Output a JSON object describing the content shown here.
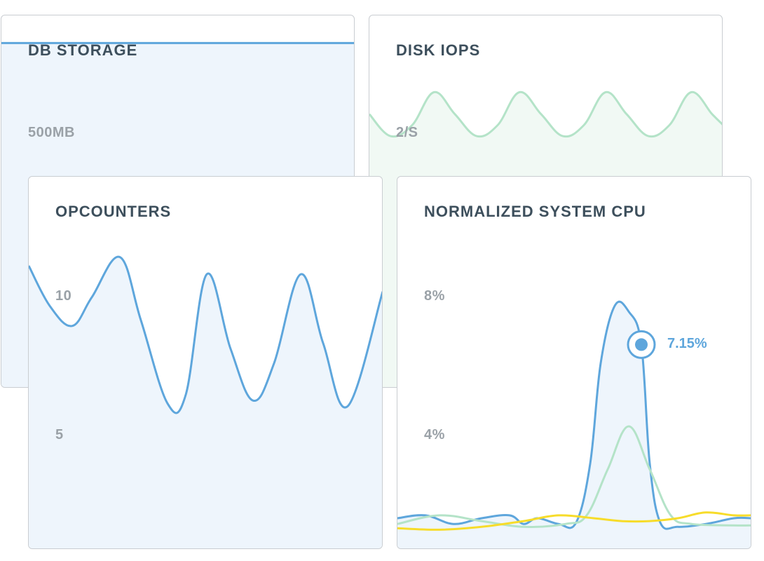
{
  "colors": {
    "blue": "#5ea6dc",
    "blue_fill": "#eef5fc",
    "green": "#b4e3c8",
    "green_fill": "#f1f9f4",
    "yellow": "#f7dc2a",
    "title": "#3d4f5c",
    "tick": "#9aa1a7"
  },
  "chart_data": [
    {
      "type": "area",
      "title": "DB STORAGE",
      "y_ticks": [
        {
          "label": "500MB",
          "value": 500
        }
      ],
      "series": [
        {
          "color": "blue",
          "values": [
            500,
            500,
            500,
            500,
            500,
            500,
            500,
            500,
            500,
            500
          ]
        }
      ],
      "ylim": [
        0,
        540
      ]
    },
    {
      "type": "area",
      "title": "DISK IOPS",
      "y_ticks": [
        {
          "label": "2/S",
          "value": 2
        }
      ],
      "series": [
        {
          "color": "green",
          "x": [
            0,
            30,
            61,
            92,
            122,
            153,
            183,
            214,
            245,
            276,
            306,
            337,
            367,
            398,
            428,
            459,
            489,
            505
          ],
          "values": [
            2.5,
            2.3,
            2.4,
            2.7,
            2.5,
            2.3,
            2.4,
            2.7,
            2.5,
            2.3,
            2.4,
            2.7,
            2.5,
            2.3,
            2.4,
            2.7,
            2.5,
            2.4
          ]
        }
      ],
      "ylim": [
        0,
        3.4
      ]
    },
    {
      "type": "area",
      "title": "OPCOUNTERS",
      "y_ticks": [
        {
          "label": "10",
          "value": 10
        },
        {
          "label": "5",
          "value": 5
        }
      ],
      "series": [
        {
          "color": "blue",
          "x": [
            0,
            30,
            62,
            90,
            130,
            160,
            198,
            224,
            254,
            288,
            320,
            350,
            388,
            420,
            455,
            505
          ],
          "values": [
            9.9,
            8.5,
            7.8,
            8.8,
            10.2,
            8.0,
            5.1,
            5.4,
            9.6,
            7.0,
            5.2,
            6.5,
            9.6,
            7.2,
            5.0,
            9.0
          ]
        }
      ],
      "ylim": [
        0,
        13
      ]
    },
    {
      "type": "line",
      "title": "NORMALIZED SYSTEM CPU",
      "y_ticks": [
        {
          "label": "8%",
          "value": 8
        },
        {
          "label": "4%",
          "value": 4
        }
      ],
      "annotation": {
        "label": "7.15%",
        "x": 348,
        "value": 7.15
      },
      "series": [
        {
          "color": "blue",
          "x": [
            0,
            40,
            80,
            120,
            160,
            180,
            200,
            230,
            255,
            275,
            290,
            310,
            330,
            348,
            360,
            375,
            400,
            440,
            480,
            505
          ],
          "values": [
            1.1,
            1.2,
            0.9,
            1.1,
            1.2,
            0.9,
            1.1,
            0.9,
            0.95,
            3.0,
            6.5,
            8.5,
            8.3,
            7.15,
            3.0,
            0.95,
            0.8,
            0.9,
            1.1,
            1.1
          ]
        },
        {
          "color": "green",
          "x": [
            0,
            60,
            120,
            180,
            240,
            270,
            300,
            330,
            360,
            390,
            420,
            480,
            505
          ],
          "values": [
            0.9,
            1.2,
            1.0,
            0.8,
            0.9,
            1.2,
            2.8,
            4.3,
            2.8,
            1.2,
            0.9,
            0.85,
            0.85
          ]
        },
        {
          "color": "yellow",
          "x": [
            0,
            60,
            120,
            180,
            230,
            280,
            320,
            360,
            400,
            440,
            480,
            505
          ],
          "values": [
            0.75,
            0.7,
            0.8,
            1.0,
            1.2,
            1.1,
            1.0,
            1.0,
            1.1,
            1.3,
            1.2,
            1.2
          ]
        }
      ],
      "ylim": [
        0,
        13
      ]
    }
  ]
}
